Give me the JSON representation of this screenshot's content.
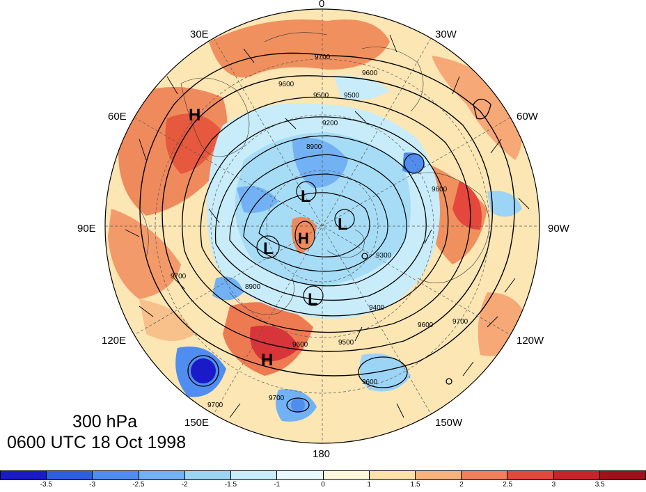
{
  "title": {
    "level": "300 hPa",
    "time": "0600 UTC 18 Oct 1998"
  },
  "longitude_labels": {
    "lon_0": "0",
    "lon_30w": "30W",
    "lon_60w": "60W",
    "lon_90w": "90W",
    "lon_120w": "120W",
    "lon_150w": "150W",
    "lon_180": "180",
    "lon_150e": "150E",
    "lon_120e": "120E",
    "lon_90e": "90E",
    "lon_60e": "60E",
    "lon_30e": "30E"
  },
  "pressure_centers": {
    "h1": "H",
    "h2": "H",
    "h3": "H",
    "l1": "L",
    "l2": "L",
    "l3": "L",
    "l4": "L"
  },
  "contour_labels": {
    "c9700a": "9700",
    "c9600a": "9600",
    "c9600b": "9600",
    "c9500a": "9500",
    "c9500b": "9500",
    "c9200": "9200",
    "c8900a": "8900",
    "c8900b": "8900",
    "c9400": "9400",
    "c9300": "9300",
    "c9600c": "9600",
    "c9700b": "9700",
    "c9500c": "9500",
    "c9600d": "9600",
    "c9700c": "9700",
    "c9700d": "9700",
    "c9600e": "9600",
    "c9700e": "9700",
    "c9600f": "9600"
  },
  "colorbar": {
    "ticks": [
      "-3.5",
      "-3",
      "-2.5",
      "-2",
      "-1.5",
      "-1",
      "0",
      "1",
      "1.5",
      "2",
      "2.5",
      "3",
      "3.5"
    ],
    "colors": [
      "#1a1ac8",
      "#2e5fe0",
      "#4f8ef0",
      "#72b2f4",
      "#9cd4f6",
      "#c8ecfa",
      "#e8f8fc",
      "#fdf7dc",
      "#fbe2a8",
      "#f8b37c",
      "#f0805a",
      "#e4473c",
      "#c8222a",
      "#a0101c"
    ]
  }
}
